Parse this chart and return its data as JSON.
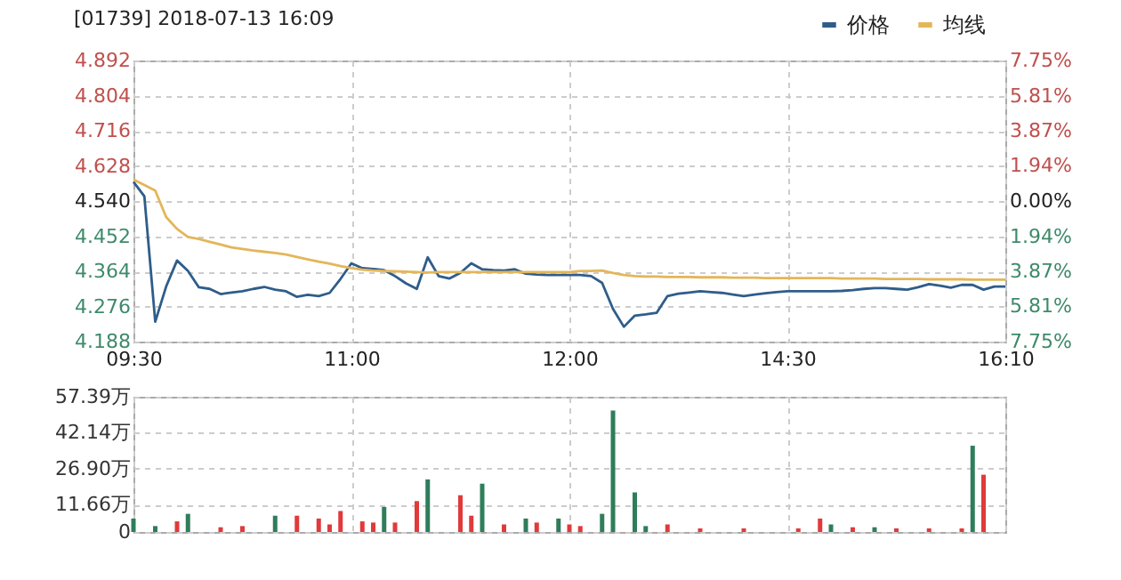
{
  "chart_data": [
    {
      "type": "line",
      "title": "[01739] 2018-07-13 16:09",
      "categories": [
        "09:30",
        null,
        null,
        null,
        null,
        null,
        null,
        null,
        null,
        null,
        null,
        null,
        null,
        null,
        null,
        null,
        null,
        null,
        null,
        null,
        "11:00",
        null,
        null,
        null,
        null,
        null,
        null,
        null,
        null,
        null,
        null,
        null,
        null,
        null,
        null,
        null,
        null,
        null,
        null,
        null,
        "12:00",
        null,
        null,
        null,
        null,
        null,
        null,
        null,
        null,
        null,
        null,
        null,
        null,
        null,
        null,
        null,
        null,
        null,
        null,
        null,
        "14:30",
        null,
        null,
        null,
        null,
        null,
        null,
        null,
        null,
        null,
        null,
        null,
        null,
        null,
        null,
        null,
        null,
        null,
        null,
        null,
        "16:10"
      ],
      "ylim": [
        4.188,
        4.892
      ],
      "yticks": [
        4.188,
        4.276,
        4.364,
        4.452,
        {
          "value": 4.54,
          "label": "4.540"
        },
        4.628,
        4.716,
        4.804,
        4.892
      ],
      "y2lim": [
        -7.75,
        7.75
      ],
      "y2ticks": [
        {
          "value": -7.75,
          "label": "7.75%"
        },
        {
          "value": -5.81,
          "label": "5.81%"
        },
        {
          "value": -3.87,
          "label": "3.87%"
        },
        {
          "value": -1.94,
          "label": "1.94%"
        },
        {
          "value": 0,
          "label": "0.00%"
        },
        {
          "value": 1.94,
          "label": "1.94%"
        },
        {
          "value": 3.87,
          "label": "3.87%"
        },
        {
          "value": 5.81,
          "label": "5.81%"
        },
        {
          "value": 7.75,
          "label": "7.75%"
        }
      ],
      "grid": true,
      "legend": "top right",
      "series": [
        {
          "name": "价格",
          "color": "#2f5d8a",
          "values": [
            4.588,
            4.552,
            4.238,
            4.326,
            4.391,
            4.365,
            4.324,
            4.32,
            4.307,
            4.311,
            4.314,
            4.32,
            4.325,
            4.318,
            4.314,
            4.3,
            4.305,
            4.302,
            4.31,
            4.345,
            4.384,
            4.372,
            4.37,
            4.367,
            4.352,
            4.334,
            4.32,
            4.399,
            4.352,
            4.346,
            4.36,
            4.384,
            4.369,
            4.367,
            4.366,
            4.369,
            4.358,
            4.356,
            4.355,
            4.355,
            4.355,
            4.355,
            4.352,
            4.335,
            4.27,
            4.225,
            4.253,
            4.256,
            4.26,
            4.302,
            4.308,
            4.311,
            4.314,
            4.312,
            4.31,
            4.306,
            4.302,
            4.306,
            4.309,
            4.312,
            4.314,
            4.314,
            4.314,
            4.314,
            4.314,
            4.315,
            4.317,
            4.32,
            4.322,
            4.322,
            4.32,
            4.318,
            4.324,
            4.332,
            4.328,
            4.323,
            4.33,
            4.33,
            4.318,
            4.326,
            4.326
          ]
        },
        {
          "name": "均线",
          "color": "#e3b65a",
          "values": [
            4.594,
            4.58,
            4.566,
            4.5,
            4.47,
            4.45,
            4.445,
            4.438,
            4.431,
            4.424,
            4.42,
            4.416,
            4.413,
            4.41,
            4.406,
            4.4,
            4.394,
            4.388,
            4.383,
            4.377,
            4.372,
            4.368,
            4.366,
            4.365,
            4.364,
            4.363,
            4.362,
            4.361,
            4.362,
            4.362,
            4.362,
            4.362,
            4.362,
            4.362,
            4.362,
            4.362,
            4.362,
            4.362,
            4.362,
            4.362,
            4.362,
            4.365,
            4.365,
            4.366,
            4.36,
            4.355,
            4.352,
            4.351,
            4.351,
            4.35,
            4.35,
            4.35,
            4.349,
            4.349,
            4.349,
            4.348,
            4.348,
            4.348,
            4.347,
            4.347,
            4.347,
            4.347,
            4.347,
            4.347,
            4.347,
            4.346,
            4.346,
            4.346,
            4.346,
            4.345,
            4.345,
            4.345,
            4.345,
            4.344,
            4.344,
            4.344,
            4.344,
            4.343,
            4.343,
            4.343,
            4.343
          ]
        }
      ]
    },
    {
      "type": "bar",
      "categories": [
        null,
        null,
        null,
        null,
        null,
        null,
        null,
        null,
        null,
        null,
        null,
        null,
        null,
        null,
        null,
        null,
        null,
        null,
        null,
        null,
        null,
        null,
        null,
        null,
        null,
        null,
        null,
        null,
        null,
        null,
        null,
        null,
        null,
        null,
        null,
        null,
        null,
        null,
        null,
        null,
        null,
        null,
        null,
        null,
        null,
        null,
        null,
        null,
        null,
        null,
        null,
        null,
        null,
        null,
        null,
        null,
        null,
        null,
        null,
        null,
        null,
        null,
        null,
        null,
        null,
        null,
        null,
        null,
        null,
        null,
        null,
        null,
        null,
        null,
        null,
        null,
        null,
        null,
        null,
        null,
        null
      ],
      "ylim": [
        0,
        57.39
      ],
      "yticks": [
        0,
        {
          "value": 11.66,
          "label": "11.66万"
        },
        {
          "value": 26.9,
          "label": "26.90万"
        },
        {
          "value": 42.14,
          "label": "42.14万"
        },
        {
          "value": 57.39,
          "label": "57.39万"
        }
      ],
      "grid": true,
      "tick_labels": "y",
      "series": [
        {
          "color": "#2e7d5b",
          "values": [
            5.7,
            null,
            2.5,
            null,
            null,
            7.7,
            null,
            null,
            null,
            null,
            null,
            null,
            null,
            6.9,
            null,
            null,
            null,
            null,
            null,
            null,
            null,
            null,
            null,
            10.6,
            null,
            null,
            null,
            22.3,
            null,
            null,
            null,
            null,
            20.5,
            null,
            null,
            null,
            5.7,
            null,
            null,
            5.7,
            null,
            null,
            null,
            7.7,
            51.5,
            null,
            16.8,
            2.5,
            null,
            null,
            null,
            null,
            null,
            null,
            null,
            null,
            null,
            null,
            null,
            null,
            null,
            null,
            null,
            null,
            3.2,
            null,
            null,
            null,
            2.0,
            null,
            null,
            null,
            null,
            null,
            null,
            null,
            null,
            36.6,
            null,
            null,
            null
          ]
        },
        {
          "color": "#e03a3a",
          "values": [
            null,
            null,
            null,
            null,
            4.5,
            null,
            null,
            null,
            2.0,
            null,
            2.5,
            null,
            null,
            null,
            null,
            6.9,
            null,
            5.7,
            3.2,
            8.9,
            null,
            4.5,
            4.0,
            null,
            4.0,
            null,
            13.1,
            null,
            null,
            null,
            15.6,
            6.9,
            null,
            null,
            3.2,
            null,
            null,
            4.0,
            null,
            null,
            3.2,
            2.5,
            null,
            null,
            null,
            null,
            null,
            null,
            null,
            3.2,
            null,
            null,
            1.5,
            null,
            null,
            null,
            1.5,
            null,
            null,
            null,
            null,
            1.5,
            null,
            5.7,
            null,
            null,
            2.0,
            null,
            null,
            null,
            1.5,
            null,
            null,
            1.5,
            null,
            null,
            1.5,
            null,
            24.3,
            null,
            null
          ]
        }
      ]
    }
  ]
}
